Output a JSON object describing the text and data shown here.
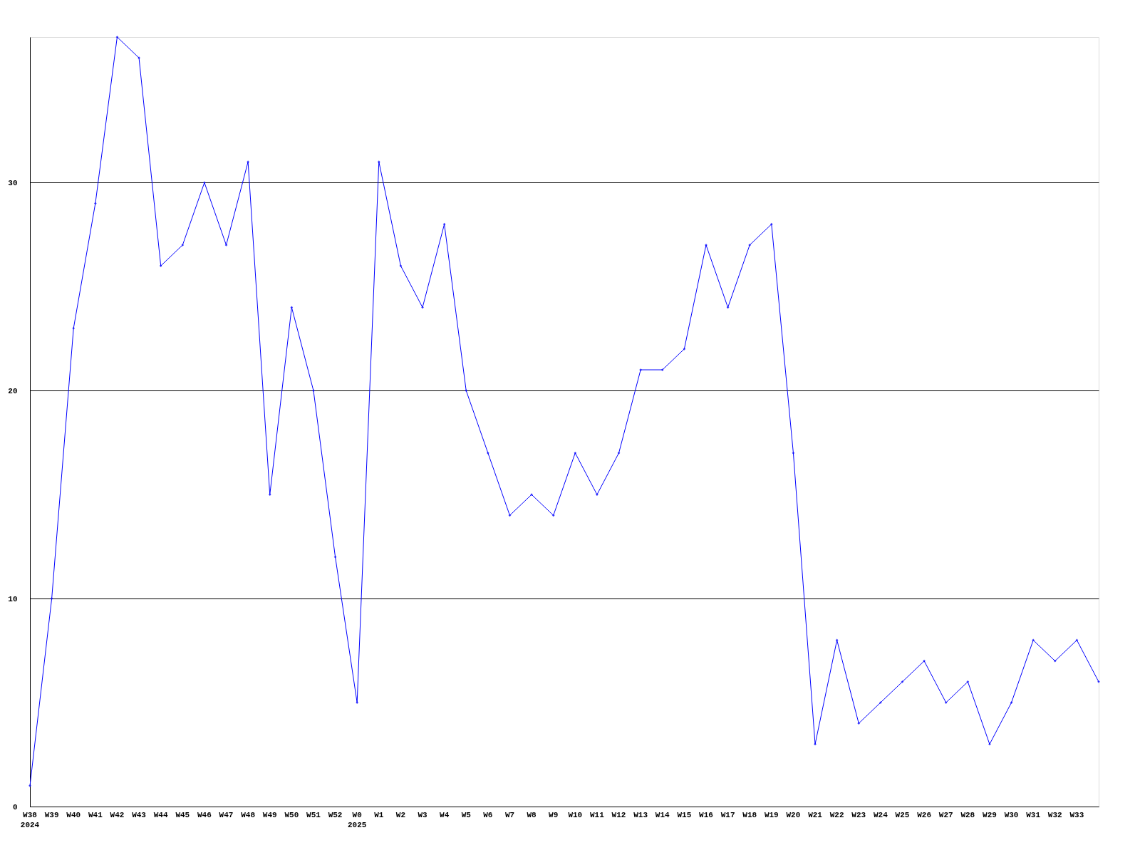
{
  "chart_data": {
    "type": "line",
    "categories": [
      "W38\n2024",
      "W39",
      "W40",
      "W41",
      "W42",
      "W43",
      "W44",
      "W45",
      "W46",
      "W47",
      "W48",
      "W49",
      "W50",
      "W51",
      "W52",
      "W0\n2025",
      "W1",
      "W2",
      "W3",
      "W4",
      "W5",
      "W6",
      "W7",
      "W8",
      "W9",
      "W10",
      "W11",
      "W12",
      "W13",
      "W14",
      "W15",
      "W16",
      "W17",
      "W18",
      "W19",
      "W20",
      "W21",
      "W22",
      "W23",
      "W24",
      "W25",
      "W26",
      "W27",
      "W28",
      "W29",
      "W30",
      "W31",
      "W32",
      "W33",
      null
    ],
    "series": [
      {
        "color": "#0000ff",
        "values": [
          1,
          10,
          23,
          29,
          37,
          36,
          26,
          27,
          30,
          27,
          31,
          15,
          24,
          20,
          12,
          5,
          31,
          26,
          24,
          28,
          20,
          17,
          14,
          15,
          14,
          17,
          15,
          17,
          21,
          21,
          22,
          27,
          24,
          27,
          28,
          17,
          3,
          8,
          4,
          5,
          6,
          7,
          5,
          6,
          3,
          5,
          8,
          7,
          8,
          6
        ]
      }
    ],
    "ylim": [
      0,
      37
    ],
    "yticks": [
      0,
      10,
      20,
      30
    ],
    "grid": "y",
    "marker": "diamond",
    "line_style": "solid",
    "legend": false
  }
}
